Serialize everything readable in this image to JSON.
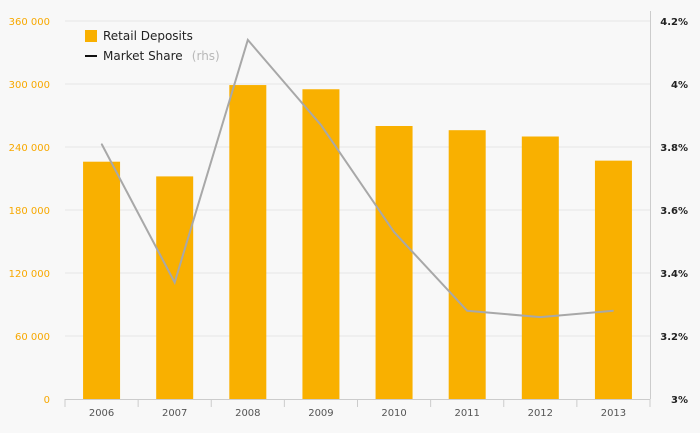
{
  "chart_data": {
    "type": "bar+line",
    "categories": [
      "2006",
      "2007",
      "2008",
      "2009",
      "2010",
      "2011",
      "2012",
      "2013"
    ],
    "series": [
      {
        "name": "Retail Deposits",
        "type": "bar",
        "axis": "left",
        "color": "#f9b000",
        "values": [
          226000,
          212000,
          299000,
          295000,
          260000,
          256000,
          250000,
          227000
        ]
      },
      {
        "name": "Market Share",
        "name_suffix": "(rhs)",
        "type": "line",
        "axis": "right",
        "color": "#a8a8a8",
        "values": [
          3.81,
          3.37,
          4.14,
          3.87,
          3.53,
          3.28,
          3.26,
          3.28
        ]
      }
    ],
    "left_axis": {
      "min": 0,
      "max": 360000,
      "ticks": [
        0,
        60000,
        120000,
        180000,
        240000,
        300000,
        360000
      ],
      "tick_labels": [
        "0",
        "60 000",
        "120 000",
        "180 000",
        "240 000",
        "300 000",
        "360 000"
      ],
      "color": "#f7a800"
    },
    "right_axis": {
      "min": 3.0,
      "max": 4.2,
      "ticks": [
        3.0,
        3.2,
        3.4,
        3.6,
        3.8,
        4.0,
        4.2
      ],
      "tick_labels": [
        "3%",
        "3.2%",
        "3.4%",
        "3.6%",
        "3.8%",
        "4%",
        "4.2%"
      ],
      "color": "#222222"
    },
    "legend": {
      "placement": "top-left",
      "items": [
        {
          "label": "Retail Deposits",
          "suffix": ""
        },
        {
          "label": "Market Share",
          "suffix": "(rhs)"
        }
      ]
    },
    "grid": true,
    "title": "",
    "xlabel": "",
    "ylabel": ""
  }
}
